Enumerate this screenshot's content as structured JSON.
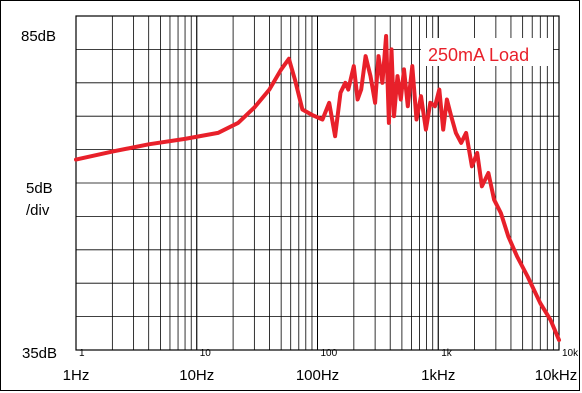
{
  "chart_data": {
    "type": "line",
    "title": "",
    "xscale": "log",
    "xlim": [
      1,
      10000
    ],
    "ylim": [
      35,
      85
    ],
    "grid": true,
    "y_axis_labels": {
      "top": "85dB",
      "middle": "5dB",
      "middle_sub": "/div",
      "bottom": "35dB"
    },
    "x_tick_labels": [
      "1Hz",
      "10Hz",
      "100Hz",
      "1kHz",
      "10kHz"
    ],
    "x_inner_tick_labels": [
      "1",
      "10",
      "100",
      "1k",
      "10k"
    ],
    "annotation": "250mA Load",
    "series": [
      {
        "color": "#e8202a",
        "x": [
          1,
          2,
          4,
          8,
          15,
          22,
          30,
          40,
          50,
          58,
          65,
          75,
          90,
          110,
          125,
          140,
          155,
          170,
          180,
          200,
          215,
          230,
          250,
          275,
          300,
          320,
          345,
          370,
          390,
          410,
          430,
          460,
          490,
          520,
          560,
          610,
          660,
          720,
          790,
          860,
          940,
          1020,
          1100,
          1180,
          1280,
          1400,
          1550,
          1700,
          1900,
          2100,
          2300,
          2600,
          2900,
          3300,
          3800,
          4500,
          5500,
          7000,
          8500,
          10000
        ],
        "y": [
          63.5,
          64.7,
          65.8,
          66.6,
          67.5,
          69.0,
          71.3,
          74.0,
          77.0,
          78.6,
          75.5,
          71.0,
          70.2,
          69.5,
          72.0,
          67.0,
          73.5,
          75.0,
          74.0,
          77.5,
          72.5,
          74.0,
          79.0,
          76.0,
          72.0,
          79.0,
          75.0,
          82.0,
          69.0,
          80.0,
          70.0,
          76.0,
          72.5,
          77.0,
          71.5,
          77.5,
          69.5,
          73.0,
          68.0,
          72.0,
          71.5,
          74.0,
          68.0,
          72.5,
          70.0,
          67.5,
          66.0,
          67.5,
          62.5,
          64.5,
          59.5,
          61.5,
          57.5,
          55.5,
          52.0,
          49.0,
          46.0,
          42.0,
          39.5,
          36.5
        ]
      }
    ]
  }
}
